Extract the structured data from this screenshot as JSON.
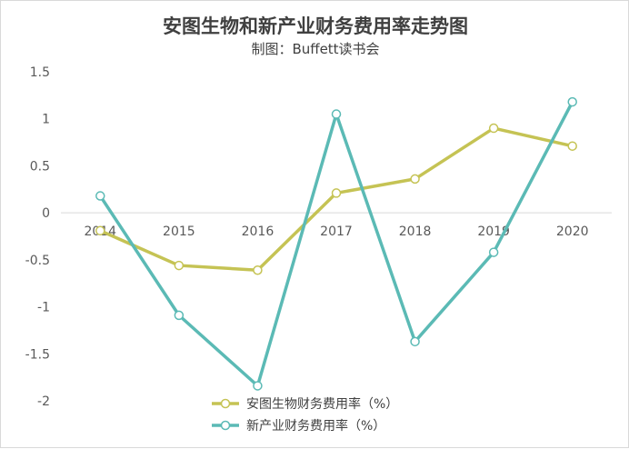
{
  "chart_data": {
    "type": "line",
    "title": "安图生物和新产业财务费用率走势图",
    "subtitle": "制图：Buffett读书会",
    "categories": [
      "2014",
      "2015",
      "2016",
      "2017",
      "2018",
      "2019",
      "2020"
    ],
    "series": [
      {
        "name": "安图生物财务费用率（%）",
        "color": "#c5c354",
        "values": [
          -0.19,
          -0.56,
          -0.61,
          0.21,
          0.36,
          0.9,
          0.71
        ]
      },
      {
        "name": "新产业财务费用率（%）",
        "color": "#5bbab5",
        "values": [
          0.18,
          -1.09,
          -1.84,
          1.05,
          -1.37,
          -0.42,
          1.18
        ]
      }
    ],
    "yticks": [
      "1.5",
      "1",
      "0.5",
      "0",
      "-0.5",
      "-1",
      "-1.5",
      "-2"
    ],
    "ylim": [
      -2,
      1.5
    ],
    "grid": false,
    "legend": "bottom-center"
  }
}
